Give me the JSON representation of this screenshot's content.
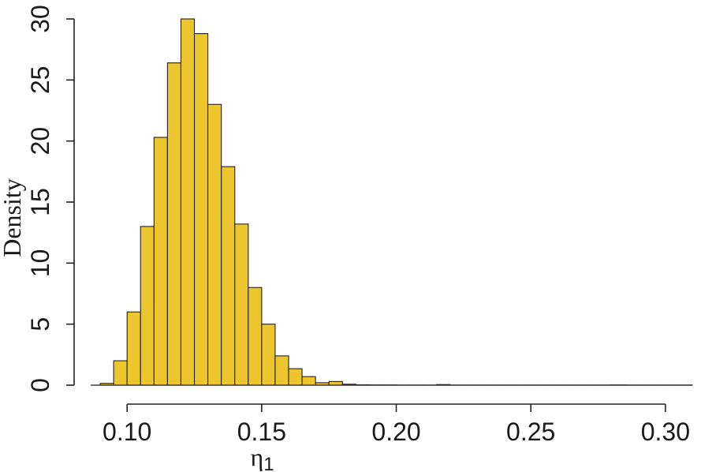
{
  "chart_data": {
    "type": "bar",
    "subtype": "histogram",
    "title": "",
    "xlabel": "η",
    "xlabel_subscript": "1",
    "ylabel": "Density",
    "xlim": [
      0.085,
      0.31
    ],
    "ylim": [
      0,
      30
    ],
    "bin_width": 0.005,
    "bin_start": 0.09,
    "values": [
      0.15,
      2.0,
      6.0,
      13.0,
      20.3,
      26.4,
      30.0,
      28.8,
      23.0,
      17.9,
      13.2,
      8.0,
      5.0,
      2.4,
      1.35,
      0.7,
      0.2,
      0.3,
      0.08,
      0.03,
      0.02,
      0.02,
      0.01,
      0.01,
      0.01,
      0.05,
      0.01,
      0.01,
      0.01,
      0.01,
      0.01,
      0.01,
      0.01,
      0.01,
      0.01,
      0.01,
      0.01,
      0.01,
      0.02,
      0.01,
      0.01,
      0.01,
      0.01,
      0.01
    ],
    "x_ticks": [
      0.1,
      0.15,
      0.2,
      0.25,
      0.3
    ],
    "x_tick_labels": [
      "0.10",
      "0.15",
      "0.20",
      "0.25",
      "0.30"
    ],
    "y_ticks": [
      0,
      5,
      10,
      15,
      20,
      25,
      30
    ],
    "y_tick_labels": [
      "0",
      "5",
      "10",
      "15",
      "20",
      "25",
      "30"
    ],
    "bar_color": "#ECC62C",
    "edge_color": "#222222",
    "grid": false,
    "legend": "none"
  }
}
